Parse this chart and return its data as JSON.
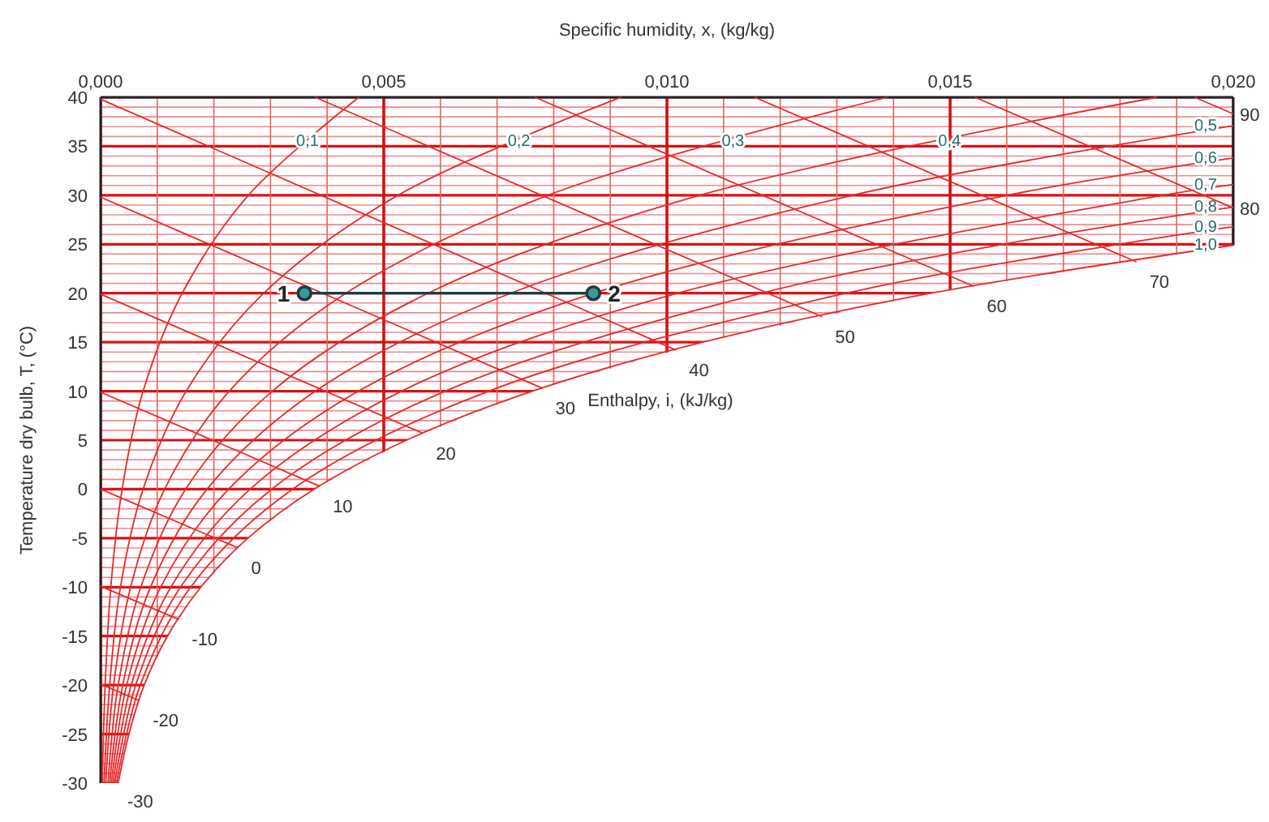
{
  "chart_data": {
    "type": "line",
    "xlabel": "Specific humidity, x, (kg/kg)",
    "ylabel": "Temperature dry bulb, T, (°C)",
    "xlim": [
      0,
      0.02
    ],
    "ylim": [
      -30,
      40
    ],
    "xticks": [
      {
        "value": 0,
        "label": "0,000"
      },
      {
        "value": 0.001,
        "label": null
      },
      {
        "value": 0.002,
        "label": null
      },
      {
        "value": 0.003,
        "label": null
      },
      {
        "value": 0.004,
        "label": null
      },
      {
        "value": 0.005,
        "label": "0,005"
      },
      {
        "value": 0.006,
        "label": null
      },
      {
        "value": 0.007,
        "label": null
      },
      {
        "value": 0.008,
        "label": null
      },
      {
        "value": 0.009,
        "label": null
      },
      {
        "value": 0.01,
        "label": "0,010"
      },
      {
        "value": 0.011,
        "label": null
      },
      {
        "value": 0.012,
        "label": null
      },
      {
        "value": 0.013,
        "label": null
      },
      {
        "value": 0.014,
        "label": null
      },
      {
        "value": 0.015,
        "label": "0,015"
      },
      {
        "value": 0.016,
        "label": null
      },
      {
        "value": 0.017,
        "label": null
      },
      {
        "value": 0.018,
        "label": null
      },
      {
        "value": 0.019,
        "label": null
      },
      {
        "value": 0.02,
        "label": "0,020"
      }
    ],
    "yticks": [
      -30,
      {
        "value": -29,
        "label": null
      },
      {
        "value": -28,
        "label": null
      },
      {
        "value": -27,
        "label": null
      },
      {
        "value": -26,
        "label": null
      },
      -25,
      {
        "value": -24,
        "label": null
      },
      {
        "value": -23,
        "label": null
      },
      {
        "value": -22,
        "label": null
      },
      {
        "value": -21,
        "label": null
      },
      -20,
      {
        "value": -19,
        "label": null
      },
      {
        "value": -18,
        "label": null
      },
      {
        "value": -17,
        "label": null
      },
      {
        "value": -16,
        "label": null
      },
      -15,
      {
        "value": -14,
        "label": null
      },
      {
        "value": -13,
        "label": null
      },
      {
        "value": -12,
        "label": null
      },
      {
        "value": -11,
        "label": null
      },
      -10,
      {
        "value": -9,
        "label": null
      },
      {
        "value": -8,
        "label": null
      },
      {
        "value": -7,
        "label": null
      },
      {
        "value": -6,
        "label": null
      },
      -5,
      {
        "value": -4,
        "label": null
      },
      {
        "value": -3,
        "label": null
      },
      {
        "value": -2,
        "label": null
      },
      {
        "value": -1,
        "label": null
      },
      0,
      {
        "value": 1,
        "label": null
      },
      {
        "value": 2,
        "label": null
      },
      {
        "value": 3,
        "label": null
      },
      {
        "value": 4,
        "label": null
      },
      5,
      {
        "value": 6,
        "label": null
      },
      {
        "value": 7,
        "label": null
      },
      {
        "value": 8,
        "label": null
      },
      {
        "value": 9,
        "label": null
      },
      10,
      {
        "value": 11,
        "label": null
      },
      {
        "value": 12,
        "label": null
      },
      {
        "value": 13,
        "label": null
      },
      {
        "value": 14,
        "label": null
      },
      15,
      {
        "value": 16,
        "label": null
      },
      {
        "value": 17,
        "label": null
      },
      {
        "value": 18,
        "label": null
      },
      {
        "value": 19,
        "label": null
      },
      20,
      {
        "value": 21,
        "label": null
      },
      {
        "value": 22,
        "label": null
      },
      {
        "value": 23,
        "label": null
      },
      {
        "value": 24,
        "label": null
      },
      25,
      {
        "value": 26,
        "label": null
      },
      {
        "value": 27,
        "label": null
      },
      {
        "value": 28,
        "label": null
      },
      {
        "value": 29,
        "label": null
      },
      30,
      {
        "value": 31,
        "label": null
      },
      {
        "value": 32,
        "label": null
      },
      {
        "value": 33,
        "label": null
      },
      {
        "value": 34,
        "label": null
      },
      35,
      {
        "value": 36,
        "label": null
      },
      {
        "value": 37,
        "label": null
      },
      {
        "value": 38,
        "label": null
      },
      {
        "value": 39,
        "label": null
      },
      40
    ],
    "grid": true,
    "series": [
      {
        "name": "0,1",
        "color": "#e8282b",
        "x": [
          3e-05,
          8e-05,
          0.00018,
          0.00038,
          0.00075,
          0.00144,
          0.00261,
          0.00456
        ],
        "values": [
          -30,
          -20,
          -10,
          0,
          10,
          20,
          30,
          40
        ]
      },
      {
        "name": "0,2",
        "color": "#e8282b",
        "x": [
          6e-05,
          0.00016,
          0.00035,
          0.00075,
          0.00151,
          0.00288,
          0.00525,
          0.00919
        ],
        "values": [
          -30,
          -20,
          -10,
          0,
          10,
          20,
          30,
          40
        ]
      },
      {
        "name": "0,3",
        "color": "#e8282b",
        "x": [
          9e-05,
          0.00023,
          0.00053,
          0.00113,
          0.00227,
          0.00433,
          0.0079,
          0.01389
        ],
        "values": [
          -30,
          -20,
          -10,
          0,
          10,
          20,
          30,
          40
        ]
      },
      {
        "name": "0,4",
        "color": "#e8282b",
        "x": [
          0.00013,
          0.00031,
          0.00071,
          0.0015,
          0.00303,
          0.00578,
          0.01058,
          0.01865
        ],
        "values": [
          -30,
          -20,
          -10,
          0,
          10,
          20,
          30,
          40
        ]
      },
      {
        "name": "0,5",
        "color": "#e8282b",
        "x": [
          0.00016,
          0.00039,
          0.00088,
          0.00188,
          0.00379,
          0.00724,
          0.01328,
          0.02
        ],
        "values": [
          -30,
          -20,
          -10,
          0,
          10,
          20,
          30,
          37.1
        ]
      },
      {
        "name": "0,6",
        "color": "#e8282b",
        "x": [
          0.00019,
          0.00046,
          0.00106,
          0.00226,
          0.00455,
          0.00871,
          0.01601,
          0.02
        ],
        "values": [
          -30,
          -20,
          -10,
          0,
          10,
          20,
          30,
          33.8
        ]
      },
      {
        "name": "0,7",
        "color": "#e8282b",
        "x": [
          0.00022,
          0.00054,
          0.00124,
          0.00264,
          0.00531,
          0.01019,
          0.01876,
          0.02
        ],
        "values": [
          -30,
          -20,
          -10,
          0,
          10,
          20,
          30,
          31.1
        ]
      },
      {
        "name": "0,8",
        "color": "#e8282b",
        "x": [
          0.00025,
          0.00062,
          0.00141,
          0.00302,
          0.00608,
          0.01167,
          0.01593,
          0.02
        ],
        "values": [
          -30,
          -20,
          -10,
          0,
          10,
          20,
          25,
          28.8
        ]
      },
      {
        "name": "0,9",
        "color": "#e8282b",
        "x": [
          0.00028,
          0.0007,
          0.00159,
          0.00339,
          0.00685,
          0.01316,
          0.01798,
          0.02
        ],
        "values": [
          -30,
          -20,
          -10,
          0,
          10,
          20,
          25,
          26.8
        ]
      },
      {
        "name": "1,0",
        "color": "#e8282b",
        "x": [
          0.00031,
          0.0005,
          0.00077,
          0.00118,
          0.00177,
          0.0026,
          0.00377,
          0.0054,
          0.00762,
          0.01063,
          0.01466,
          0.02
        ],
        "values": [
          -30,
          -25,
          -20,
          -15,
          -10,
          -5,
          0,
          5,
          10,
          15,
          20,
          24.9
        ]
      },
      {
        "name": "-20",
        "color": "#e8282b",
        "x": [
          0,
          0.00069
        ],
        "values": [
          -19.9,
          -21.6
        ]
      },
      {
        "name": "-10",
        "color": "#e8282b",
        "x": [
          0,
          0.00138
        ],
        "values": [
          -9.9,
          -13.3
        ]
      },
      {
        "name": "0",
        "color": "#e8282b",
        "x": [
          0,
          0.00243
        ],
        "values": [
          0,
          -6
        ]
      },
      {
        "name": "10",
        "color": "#e8282b",
        "x": [
          0,
          0.00387
        ],
        "values": [
          9.9,
          0.3
        ]
      },
      {
        "name": "20",
        "color": "#e8282b",
        "x": [
          0,
          0.00569
        ],
        "values": [
          19.9,
          5.7
        ]
      },
      {
        "name": "30",
        "color": "#e8282b",
        "x": [
          0,
          0.0078
        ],
        "values": [
          29.8,
          10.3
        ]
      },
      {
        "name": "40",
        "color": "#e8282b",
        "x": [
          0,
          0.01016
        ],
        "values": [
          39.8,
          14.2
        ]
      },
      {
        "name": "50",
        "color": "#e8282b",
        "x": [
          0.00379,
          0.01274
        ],
        "values": [
          40,
          17.6
        ]
      },
      {
        "name": "60",
        "color": "#e8282b",
        "x": [
          0.00767,
          0.01542
        ],
        "values": [
          40,
          20.7
        ]
      },
      {
        "name": "70",
        "color": "#e8282b",
        "x": [
          0.01155,
          0.01829
        ],
        "values": [
          40,
          23.2
        ]
      },
      {
        "name": "80",
        "color": "#e8282b",
        "x": [
          0.01544,
          0.02
        ],
        "values": [
          40,
          28.7
        ]
      },
      {
        "name": "90",
        "color": "#e8282b",
        "x": [
          0.01932,
          0.02
        ],
        "values": [
          40,
          38.3
        ]
      },
      {
        "color": "#1e3c3c",
        "marker": "circle",
        "x": [
          0.0036,
          0.0087
        ],
        "values": [
          20,
          20
        ]
      }
    ],
    "annotations": [
      {
        "text": "1",
        "x": 0.0036,
        "y": 20
      },
      {
        "text": "2",
        "x": 0.0087,
        "y": 20
      },
      "Enthalpy, i, (kJ/kg)",
      {
        "text": "-30",
        "x": 0.0003,
        "y": -30
      }
    ]
  }
}
